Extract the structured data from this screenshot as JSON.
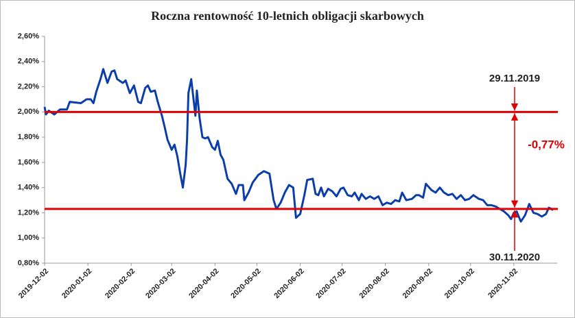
{
  "chart_data": {
    "type": "line",
    "title": "Roczna rentowność 10-letnich obligacji skarbowych",
    "x": [
      "2019-12-02",
      "2019-12-03",
      "2019-12-05",
      "2019-12-09",
      "2019-12-13",
      "2019-12-18",
      "2019-12-20",
      "2019-12-28",
      "2020-01-01",
      "2020-01-04",
      "2020-01-06",
      "2020-01-08",
      "2020-01-11",
      "2020-01-13",
      "2020-01-16",
      "2020-01-19",
      "2020-01-21",
      "2020-01-23",
      "2020-01-27",
      "2020-01-29",
      "2020-02-01",
      "2020-02-04",
      "2020-02-07",
      "2020-02-09",
      "2020-02-12",
      "2020-02-14",
      "2020-02-16",
      "2020-02-19",
      "2020-02-21",
      "2020-02-24",
      "2020-02-26",
      "2020-02-28",
      "2020-03-02",
      "2020-03-04",
      "2020-03-06",
      "2020-03-08",
      "2020-03-10",
      "2020-03-12",
      "2020-03-13",
      "2020-03-14",
      "2020-03-16",
      "2020-03-19",
      "2020-03-20",
      "2020-03-22",
      "2020-03-24",
      "2020-03-26",
      "2020-03-28",
      "2020-03-31",
      "2020-04-02",
      "2020-04-04",
      "2020-04-06",
      "2020-04-08",
      "2020-04-11",
      "2020-04-14",
      "2020-04-17",
      "2020-04-19",
      "2020-04-22",
      "2020-04-23",
      "2020-04-26",
      "2020-04-29",
      "2020-05-03",
      "2020-05-07",
      "2020-05-11",
      "2020-05-14",
      "2020-05-16",
      "2020-05-19",
      "2020-05-22",
      "2020-05-25",
      "2020-05-28",
      "2020-05-30",
      "2020-06-02",
      "2020-06-05",
      "2020-06-07",
      "2020-06-11",
      "2020-06-13",
      "2020-06-15",
      "2020-06-17",
      "2020-06-19",
      "2020-06-22",
      "2020-06-25",
      "2020-06-28",
      "2020-07-01",
      "2020-07-03",
      "2020-07-06",
      "2020-07-09",
      "2020-07-11",
      "2020-07-14",
      "2020-07-16",
      "2020-07-19",
      "2020-07-22",
      "2020-07-25",
      "2020-07-28",
      "2020-07-31",
      "2020-08-03",
      "2020-08-06",
      "2020-08-09",
      "2020-08-12",
      "2020-08-14",
      "2020-08-17",
      "2020-08-21",
      "2020-08-24",
      "2020-08-26",
      "2020-08-29",
      "2020-08-31",
      "2020-09-04",
      "2020-09-07",
      "2020-09-10",
      "2020-09-13",
      "2020-09-16",
      "2020-09-19",
      "2020-09-22",
      "2020-09-25",
      "2020-09-28",
      "2020-10-01",
      "2020-10-04",
      "2020-10-08",
      "2020-10-11",
      "2020-10-14",
      "2020-10-17",
      "2020-10-20",
      "2020-10-23",
      "2020-10-26",
      "2020-10-29",
      "2020-10-31",
      "2020-11-02",
      "2020-11-04",
      "2020-11-07",
      "2020-11-10",
      "2020-11-13",
      "2020-11-16",
      "2020-11-19",
      "2020-11-22",
      "2020-11-25",
      "2020-11-27",
      "2020-11-29",
      "2020-11-30"
    ],
    "series": [
      {
        "color": "#0b3ea8",
        "values": [
          2.04,
          1.98,
          2.01,
          1.98,
          2.02,
          2.02,
          2.08,
          2.07,
          2.1,
          2.1,
          2.07,
          2.16,
          2.26,
          2.34,
          2.23,
          2.32,
          2.33,
          2.26,
          2.23,
          2.25,
          2.15,
          2.21,
          2.08,
          2.07,
          2.19,
          2.21,
          2.16,
          2.17,
          2.08,
          1.97,
          1.88,
          1.78,
          1.7,
          1.74,
          1.65,
          1.52,
          1.4,
          1.58,
          1.78,
          2.15,
          2.26,
          1.97,
          2.17,
          1.95,
          1.8,
          1.79,
          1.8,
          1.72,
          1.7,
          1.77,
          1.66,
          1.62,
          1.47,
          1.43,
          1.35,
          1.42,
          1.42,
          1.3,
          1.36,
          1.44,
          1.5,
          1.53,
          1.51,
          1.3,
          1.23,
          1.28,
          1.36,
          1.42,
          1.4,
          1.16,
          1.19,
          1.34,
          1.46,
          1.47,
          1.35,
          1.34,
          1.4,
          1.33,
          1.39,
          1.37,
          1.33,
          1.39,
          1.4,
          1.34,
          1.33,
          1.36,
          1.3,
          1.35,
          1.31,
          1.33,
          1.31,
          1.33,
          1.26,
          1.28,
          1.27,
          1.3,
          1.29,
          1.36,
          1.3,
          1.31,
          1.34,
          1.34,
          1.32,
          1.43,
          1.38,
          1.36,
          1.4,
          1.36,
          1.34,
          1.35,
          1.31,
          1.34,
          1.3,
          1.31,
          1.34,
          1.31,
          1.3,
          1.26,
          1.26,
          1.25,
          1.23,
          1.21,
          1.18,
          1.15,
          1.2,
          1.21,
          1.13,
          1.18,
          1.27,
          1.2,
          1.19,
          1.17,
          1.19,
          1.24,
          1.23,
          1.22
        ]
      }
    ],
    "xlim": [
      "2019-12-02",
      "2020-12-03"
    ],
    "xticks": [
      "2019-12-02",
      "2020-01-02",
      "2020-02-02",
      "2020-03-02",
      "2020-04-02",
      "2020-05-02",
      "2020-06-02",
      "2020-07-02",
      "2020-08-02",
      "2020-09-02",
      "2020-10-02",
      "2020-11-02"
    ],
    "ylim": [
      0.8,
      2.6
    ],
    "yticks": [
      {
        "value": 0.8,
        "label": "0,80%"
      },
      {
        "value": 1.0,
        "label": "1,00%"
      },
      {
        "value": 1.2,
        "label": "1,20%"
      },
      {
        "value": 1.4,
        "label": "1,40%"
      },
      {
        "value": 1.6,
        "label": "1,60%"
      },
      {
        "value": 1.8,
        "label": "1,80%"
      },
      {
        "value": 2.0,
        "label": "2,00%"
      },
      {
        "value": 2.2,
        "label": "2,20%"
      },
      {
        "value": 2.4,
        "label": "2,40%"
      },
      {
        "value": 2.6,
        "label": "2,60%"
      }
    ],
    "reference_lines": [
      2.0,
      1.23
    ],
    "reference_color": "#e00000",
    "annotations": [
      "29.11.2019",
      "-0,77%",
      "30.11.2020"
    ]
  }
}
